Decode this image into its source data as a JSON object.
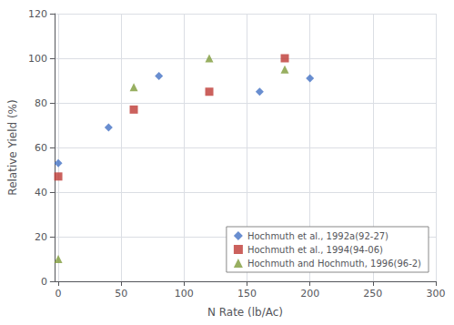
{
  "chart_data": {
    "type": "scatter",
    "xlabel": "N Rate (lb/Ac)",
    "ylabel": "Relative Yield (%)",
    "series": [
      {
        "name": "Hochmuth et al., 1992a(92-27)",
        "color": "#4472C4",
        "marker": "diamond",
        "x": [
          0,
          40,
          80,
          160,
          200
        ],
        "values": [
          53,
          69,
          92,
          85,
          91
        ]
      },
      {
        "name": "Hochmuth et al., 1994(94-06)",
        "color": "#BE3A34",
        "marker": "square",
        "x": [
          0,
          60,
          120,
          180
        ],
        "values": [
          47,
          77,
          85,
          100
        ]
      },
      {
        "name": "Hochmuth and Hochmuth, 1996(96-2)",
        "color": "#7E9B3A",
        "marker": "triangle",
        "x": [
          0,
          60,
          120,
          180
        ],
        "values": [
          10,
          87,
          100,
          95
        ]
      }
    ],
    "xlim": [
      -3,
      300
    ],
    "ylim": [
      0,
      120
    ],
    "xticks": [
      0,
      50,
      100,
      150,
      200,
      250,
      300
    ],
    "yticks": [
      0,
      20,
      40,
      60,
      80,
      100,
      120
    ],
    "grid": true,
    "legend": "lower right"
  }
}
